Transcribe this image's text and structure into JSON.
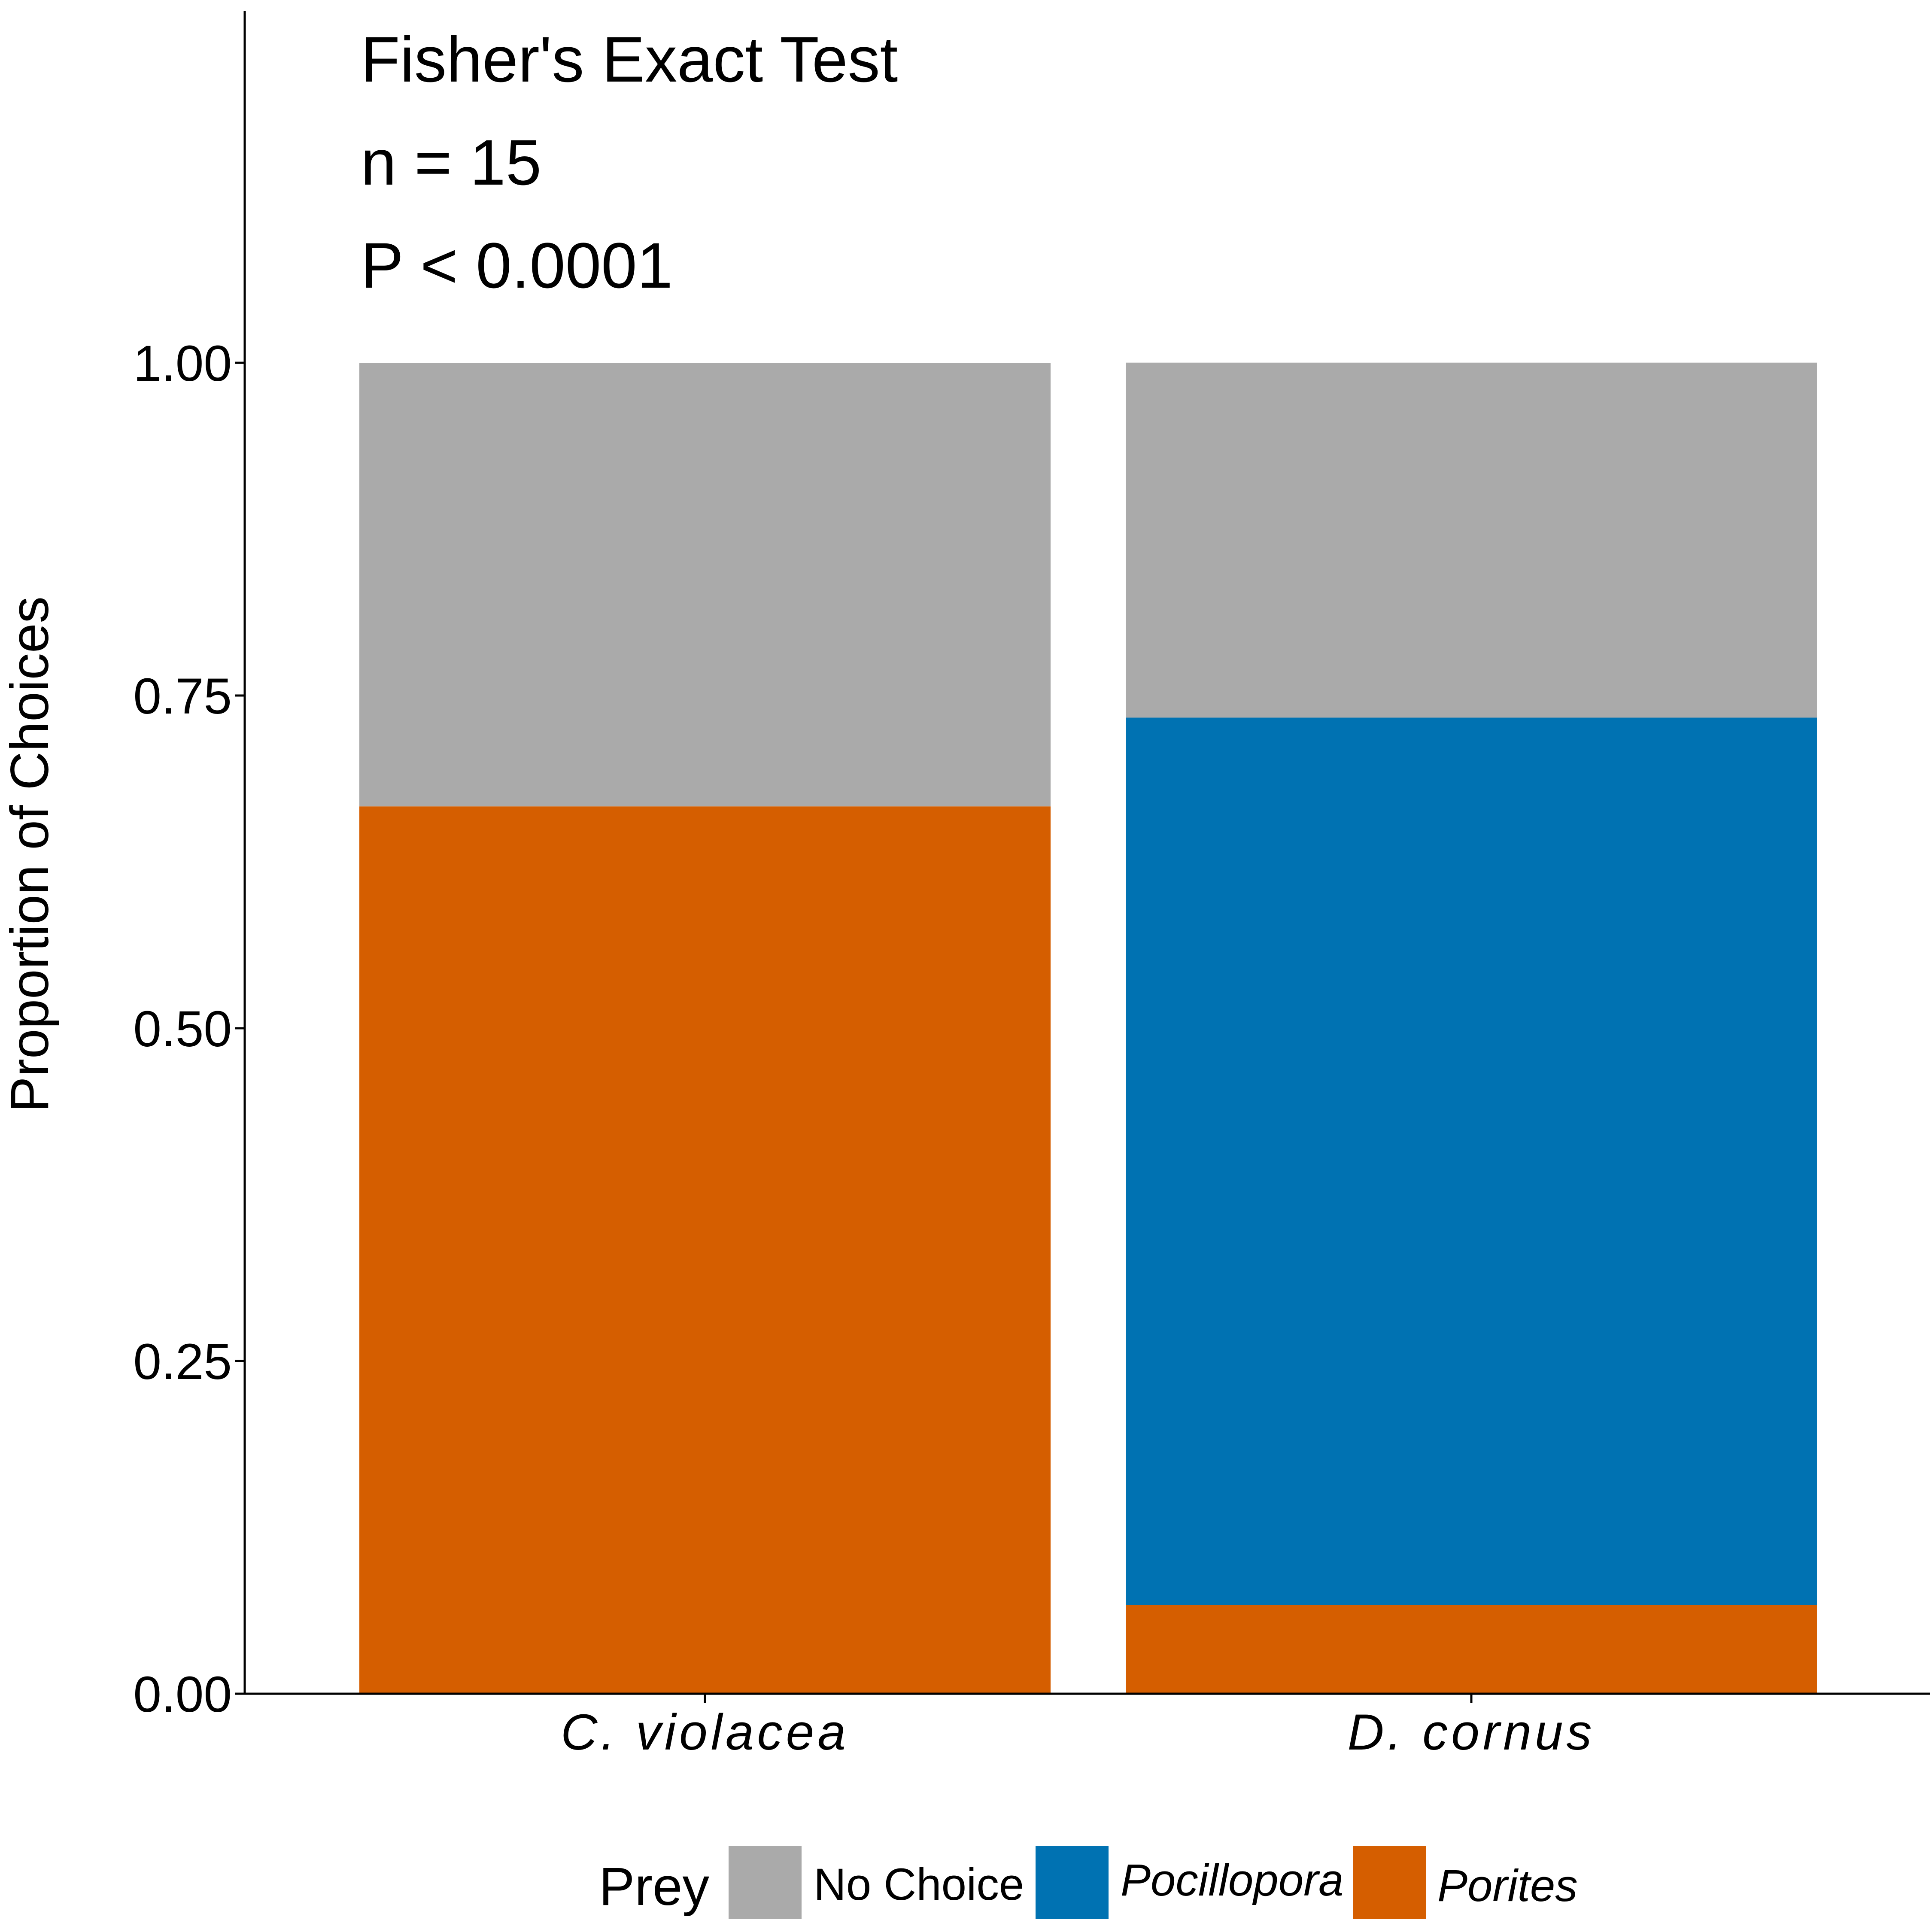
{
  "chart_data": {
    "type": "bar",
    "stacked": true,
    "categories": [
      "C. violacea",
      "D. cornus"
    ],
    "series": [
      {
        "name": "Porites",
        "color": "#D55E00",
        "values": [
          0.6667,
          0.0667
        ]
      },
      {
        "name": "Pocillopora",
        "color": "#0072B2",
        "values": [
          0.0,
          0.6667
        ]
      },
      {
        "name": "No Choice",
        "color": "#AAAAAA",
        "values": [
          0.3333,
          0.2667
        ]
      }
    ],
    "annotations": [
      "Fisher's Exact Test",
      "n = 15",
      "P < 0.0001"
    ],
    "xlabel": "",
    "ylabel": "Proportion of Choices",
    "ylim": [
      0,
      1.0
    ],
    "yticks": [
      "0.00",
      "0.25",
      "0.50",
      "0.75",
      "1.00"
    ],
    "grid": false,
    "legend": {
      "title": "Prey",
      "placement": "bottom",
      "order": [
        "No Choice",
        "Pocillopora",
        "Porites"
      ],
      "italic": [
        "Pocillopora",
        "Porites"
      ]
    }
  }
}
